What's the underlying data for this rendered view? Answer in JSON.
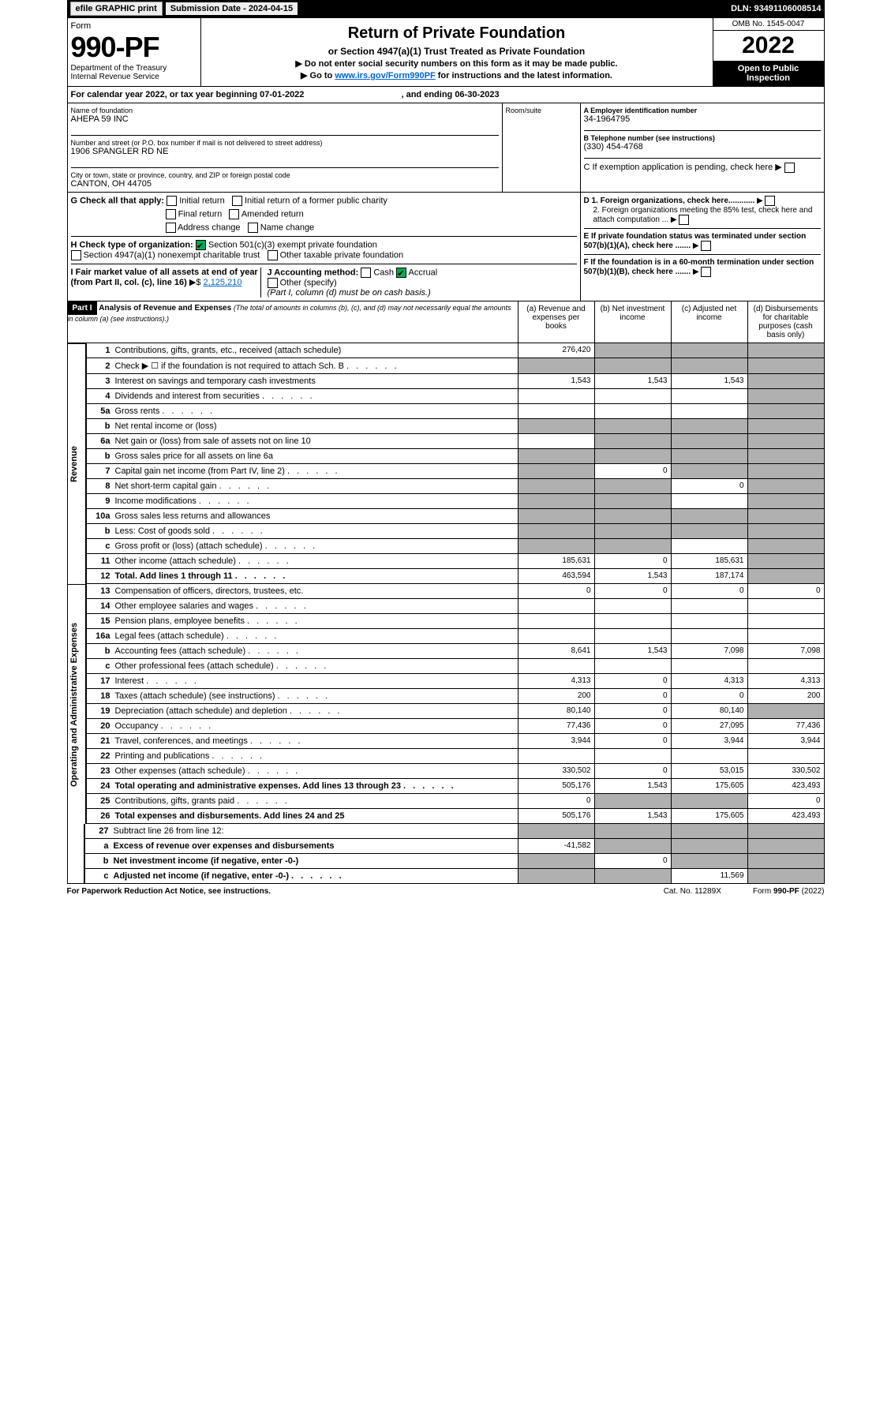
{
  "header": {
    "efile": "efile GRAPHIC print",
    "submission": "Submission Date - 2024-04-15",
    "dln": "DLN: 93491106008514"
  },
  "form": {
    "form_word": "Form",
    "number": "990-PF",
    "dept": "Department of the Treasury",
    "irs": "Internal Revenue Service",
    "title": "Return of Private Foundation",
    "subtitle": "or Section 4947(a)(1) Trust Treated as Private Foundation",
    "inst1": "▶ Do not enter social security numbers on this form as it may be made public.",
    "inst2_pre": "▶ Go to ",
    "inst2_link": "www.irs.gov/Form990PF",
    "inst2_post": " for instructions and the latest information.",
    "omb": "OMB No. 1545-0047",
    "year": "2022",
    "open": "Open to Public Inspection"
  },
  "calendar": {
    "text": "For calendar year 2022, or tax year beginning 07-01-2022",
    "ending": ", and ending 06-30-2023"
  },
  "entity": {
    "name_label": "Name of foundation",
    "name": "AHEPA 59 INC",
    "addr_label": "Number and street (or P.O. box number if mail is not delivered to street address)",
    "addr": "1906 SPANGLER RD NE",
    "room_label": "Room/suite",
    "city_label": "City or town, state or province, country, and ZIP or foreign postal code",
    "city": "CANTON, OH  44705",
    "ein_label": "A Employer identification number",
    "ein": "34-1964795",
    "phone_label": "B Telephone number (see instructions)",
    "phone": "(330) 454-4768",
    "c_label": "C If exemption application is pending, check here"
  },
  "checks": {
    "g_label": "G Check all that apply:",
    "g1": "Initial return",
    "g2": "Initial return of a former public charity",
    "g3": "Final return",
    "g4": "Amended return",
    "g5": "Address change",
    "g6": "Name change",
    "h_label": "H Check type of organization:",
    "h1": "Section 501(c)(3) exempt private foundation",
    "h2": "Section 4947(a)(1) nonexempt charitable trust",
    "h3": "Other taxable private foundation",
    "i_label": "I Fair market value of all assets at end of year (from Part II, col. (c), line 16)",
    "i_val": "2,125,210",
    "j_label": "J Accounting method:",
    "j1": "Cash",
    "j2": "Accrual",
    "j3": "Other (specify)",
    "j_note": "(Part I, column (d) must be on cash basis.)",
    "d1": "D 1. Foreign organizations, check here............",
    "d2": "2. Foreign organizations meeting the 85% test, check here and attach computation ...",
    "e": "E  If private foundation status was terminated under section 507(b)(1)(A), check here .......",
    "f": "F  If the foundation is in a 60-month termination under section 507(b)(1)(B), check here ......."
  },
  "part1": {
    "label": "Part I",
    "title": "Analysis of Revenue and Expenses",
    "note": "(The total of amounts in columns (b), (c), and (d) may not necessarily equal the amounts in column (a) (see instructions).)",
    "col_a": "(a)  Revenue and expenses per books",
    "col_b": "(b)  Net investment income",
    "col_c": "(c)  Adjusted net income",
    "col_d": "(d)  Disbursements for charitable purposes (cash basis only)"
  },
  "revenue_label": "Revenue",
  "oae_label": "Operating and Administrative Expenses",
  "lines": [
    {
      "n": "1",
      "t": "Contributions, gifts, grants, etc., received (attach schedule)",
      "a": "276,420",
      "b": "_",
      "c": "_",
      "d": "_"
    },
    {
      "n": "2",
      "t": "Check ▶ ☐ if the foundation is not required to attach Sch. B",
      "a": "_",
      "b": "_",
      "c": "_",
      "d": "_",
      "dots": true
    },
    {
      "n": "3",
      "t": "Interest on savings and temporary cash investments",
      "a": "1,543",
      "b": "1,543",
      "c": "1,543",
      "d": "_"
    },
    {
      "n": "4",
      "t": "Dividends and interest from securities",
      "a": "",
      "b": "",
      "c": "",
      "d": "_",
      "dots": true
    },
    {
      "n": "5a",
      "t": "Gross rents",
      "a": "",
      "b": "",
      "c": "",
      "d": "_",
      "dots": true
    },
    {
      "n": "b",
      "t": "Net rental income or (loss)",
      "a": "_",
      "b": "_",
      "c": "_",
      "d": "_",
      "half": true
    },
    {
      "n": "6a",
      "t": "Net gain or (loss) from sale of assets not on line 10",
      "a": "",
      "b": "_",
      "c": "_",
      "d": "_"
    },
    {
      "n": "b",
      "t": "Gross sales price for all assets on line 6a",
      "a": "_",
      "b": "_",
      "c": "_",
      "d": "_",
      "half": true
    },
    {
      "n": "7",
      "t": "Capital gain net income (from Part IV, line 2)",
      "a": "_",
      "b": "0",
      "c": "_",
      "d": "_",
      "dots": true
    },
    {
      "n": "8",
      "t": "Net short-term capital gain",
      "a": "_",
      "b": "_",
      "c": "0",
      "d": "_",
      "dots": true
    },
    {
      "n": "9",
      "t": "Income modifications",
      "a": "_",
      "b": "_",
      "c": "",
      "d": "_",
      "dots": true
    },
    {
      "n": "10a",
      "t": "Gross sales less returns and allowances",
      "a": "_",
      "b": "_",
      "c": "_",
      "d": "_",
      "half": true
    },
    {
      "n": "b",
      "t": "Less: Cost of goods sold",
      "a": "_",
      "b": "_",
      "c": "_",
      "d": "_",
      "half": true,
      "dots": true
    },
    {
      "n": "c",
      "t": "Gross profit or (loss) (attach schedule)",
      "a": "_",
      "b": "_",
      "c": "",
      "d": "_",
      "dots": true
    },
    {
      "n": "11",
      "t": "Other income (attach schedule)",
      "a": "185,631",
      "b": "0",
      "c": "185,631",
      "d": "_",
      "dots": true
    },
    {
      "n": "12",
      "t": "Total. Add lines 1 through 11",
      "a": "463,594",
      "b": "1,543",
      "c": "187,174",
      "d": "_",
      "bold": true,
      "dots": true
    }
  ],
  "exp_lines": [
    {
      "n": "13",
      "t": "Compensation of officers, directors, trustees, etc.",
      "a": "0",
      "b": "0",
      "c": "0",
      "d": "0"
    },
    {
      "n": "14",
      "t": "Other employee salaries and wages",
      "a": "",
      "b": "",
      "c": "",
      "d": "",
      "dots": true
    },
    {
      "n": "15",
      "t": "Pension plans, employee benefits",
      "a": "",
      "b": "",
      "c": "",
      "d": "",
      "dots": true
    },
    {
      "n": "16a",
      "t": "Legal fees (attach schedule)",
      "a": "",
      "b": "",
      "c": "",
      "d": "",
      "dots": true
    },
    {
      "n": "b",
      "t": "Accounting fees (attach schedule)",
      "a": "8,641",
      "b": "1,543",
      "c": "7,098",
      "d": "7,098",
      "dots": true
    },
    {
      "n": "c",
      "t": "Other professional fees (attach schedule)",
      "a": "",
      "b": "",
      "c": "",
      "d": "",
      "dots": true
    },
    {
      "n": "17",
      "t": "Interest",
      "a": "4,313",
      "b": "0",
      "c": "4,313",
      "d": "4,313",
      "dots": true
    },
    {
      "n": "18",
      "t": "Taxes (attach schedule) (see instructions)",
      "a": "200",
      "b": "0",
      "c": "0",
      "d": "200",
      "dots": true
    },
    {
      "n": "19",
      "t": "Depreciation (attach schedule) and depletion",
      "a": "80,140",
      "b": "0",
      "c": "80,140",
      "d": "_",
      "dots": true
    },
    {
      "n": "20",
      "t": "Occupancy",
      "a": "77,436",
      "b": "0",
      "c": "27,095",
      "d": "77,436",
      "dots": true
    },
    {
      "n": "21",
      "t": "Travel, conferences, and meetings",
      "a": "3,944",
      "b": "0",
      "c": "3,944",
      "d": "3,944",
      "dots": true
    },
    {
      "n": "22",
      "t": "Printing and publications",
      "a": "",
      "b": "",
      "c": "",
      "d": "",
      "dots": true
    },
    {
      "n": "23",
      "t": "Other expenses (attach schedule)",
      "a": "330,502",
      "b": "0",
      "c": "53,015",
      "d": "330,502",
      "dots": true
    },
    {
      "n": "24",
      "t": "Total operating and administrative expenses. Add lines 13 through 23",
      "a": "505,176",
      "b": "1,543",
      "c": "175,605",
      "d": "423,493",
      "bold": true,
      "dots": true
    },
    {
      "n": "25",
      "t": "Contributions, gifts, grants paid",
      "a": "0",
      "b": "_",
      "c": "_",
      "d": "0",
      "dots": true
    },
    {
      "n": "26",
      "t": "Total expenses and disbursements. Add lines 24 and 25",
      "a": "505,176",
      "b": "1,543",
      "c": "175,605",
      "d": "423,493",
      "bold": true
    }
  ],
  "net_lines": [
    {
      "n": "27",
      "t": "Subtract line 26 from line 12:",
      "a": "_",
      "b": "_",
      "c": "_",
      "d": "_"
    },
    {
      "n": "a",
      "t": "Excess of revenue over expenses and disbursements",
      "a": "-41,582",
      "b": "_",
      "c": "_",
      "d": "_",
      "bold": true
    },
    {
      "n": "b",
      "t": "Net investment income (if negative, enter -0-)",
      "a": "_",
      "b": "0",
      "c": "_",
      "d": "_",
      "bold": true
    },
    {
      "n": "c",
      "t": "Adjusted net income (if negative, enter -0-)",
      "a": "_",
      "b": "_",
      "c": "11,569",
      "d": "_",
      "bold": true,
      "dots": true
    }
  ],
  "footer": {
    "pra": "For Paperwork Reduction Act Notice, see instructions.",
    "cat": "Cat. No. 11289X",
    "form": "Form 990-PF (2022)"
  }
}
